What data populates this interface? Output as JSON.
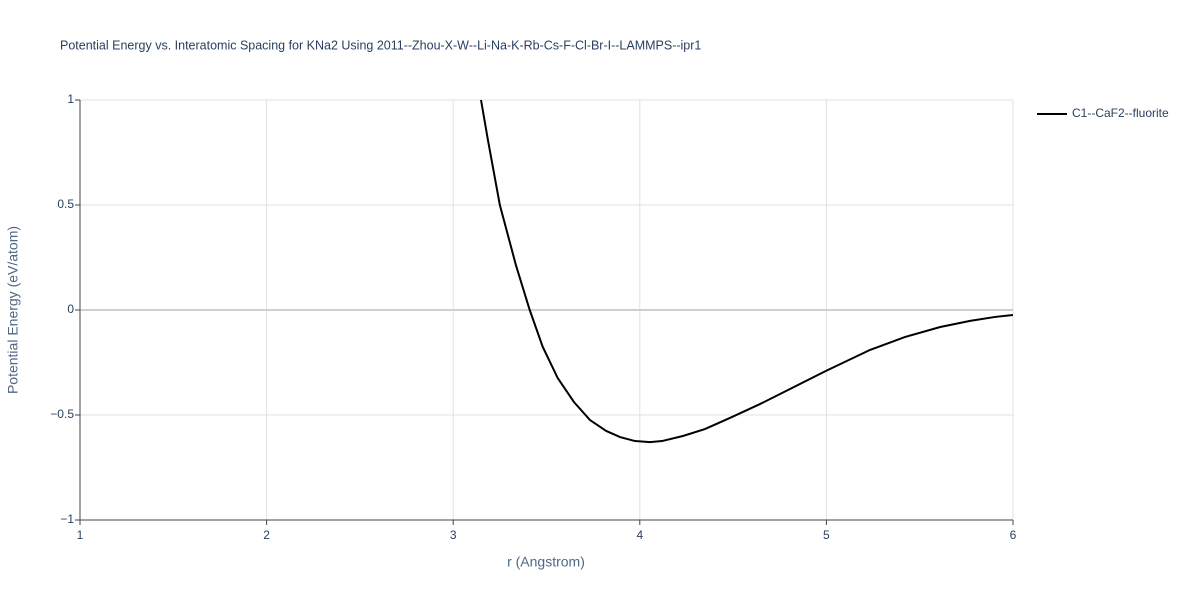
{
  "chart_data": {
    "type": "line",
    "title": "Potential Energy vs. Interatomic Spacing for KNa2 Using 2011--Zhou-X-W--Li-Na-K-Rb-Cs-F-Cl-Br-I--LAMMPS--ipr1",
    "x_label": "r (Angstrom)",
    "y_label": "Potential Energy (eV/atom)",
    "xlim": [
      1,
      6
    ],
    "ylim": [
      -1,
      1
    ],
    "xticks": [
      1,
      2,
      3,
      4,
      5,
      6
    ],
    "yticks": [
      {
        "value": -1,
        "label": "−1"
      },
      {
        "value": -0.5,
        "label": "−0.5"
      },
      0,
      0.5,
      1
    ],
    "grid": true,
    "legend_position": "top-right",
    "x": [
      3.149,
      3.186,
      3.25,
      3.336,
      3.41,
      3.48,
      3.56,
      3.647,
      3.733,
      3.82,
      3.894,
      3.974,
      4.055,
      4.119,
      4.231,
      4.349,
      4.483,
      4.644,
      4.805,
      4.998,
      5.234,
      5.42,
      5.61,
      5.77,
      5.904,
      6.0
    ],
    "series": [
      {
        "name": "C1--CaF2--fluorite",
        "color": "#000000",
        "values": [
          1.0,
          0.81,
          0.5,
          0.214,
          0.0,
          -0.176,
          -0.324,
          -0.438,
          -0.524,
          -0.576,
          -0.605,
          -0.624,
          -0.629,
          -0.624,
          -0.6,
          -0.567,
          -0.514,
          -0.448,
          -0.376,
          -0.29,
          -0.19,
          -0.129,
          -0.081,
          -0.052,
          -0.033,
          -0.024
        ]
      }
    ]
  }
}
